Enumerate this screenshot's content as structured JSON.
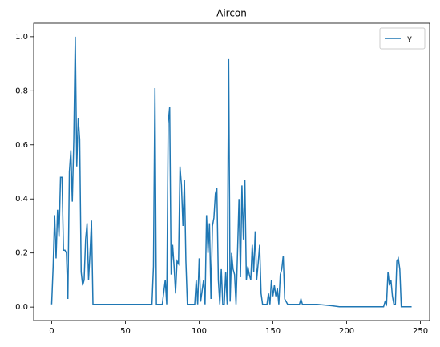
{
  "chart_data": {
    "type": "line",
    "title": "Aircon",
    "x": [
      0,
      1,
      2,
      3,
      4,
      5,
      6,
      7,
      8,
      9,
      10,
      11,
      12,
      13,
      14,
      15,
      16,
      17,
      18,
      19,
      20,
      21,
      22,
      23,
      24,
      25,
      26,
      27,
      28,
      30,
      68,
      69,
      70,
      71,
      75,
      77,
      78,
      79,
      80,
      81,
      82,
      83,
      84,
      85,
      86,
      87,
      88,
      89,
      90,
      91,
      92,
      97,
      98,
      99,
      100,
      101,
      102,
      103,
      104,
      105,
      106,
      107,
      108,
      109,
      110,
      111,
      112,
      113,
      114,
      115,
      116,
      117,
      118,
      119,
      120,
      121,
      122,
      123,
      124,
      125,
      126,
      127,
      128,
      129,
      130,
      131,
      132,
      133,
      134,
      135,
      136,
      137,
      138,
      139,
      140,
      141,
      142,
      143,
      146,
      147,
      148,
      149,
      150,
      151,
      152,
      153,
      154,
      155,
      156,
      157,
      158,
      160,
      168,
      169,
      170,
      180,
      190,
      195,
      225,
      226,
      227,
      228,
      229,
      230,
      231,
      232,
      233,
      234,
      235,
      236,
      237,
      244
    ],
    "series": [
      {
        "name": "y",
        "color": "#1f77b4",
        "values": [
          0.01,
          0.15,
          0.34,
          0.18,
          0.36,
          0.26,
          0.48,
          0.48,
          0.21,
          0.21,
          0.2,
          0.03,
          0.5,
          0.58,
          0.39,
          0.62,
          1.0,
          0.52,
          0.7,
          0.62,
          0.13,
          0.08,
          0.1,
          0.25,
          0.31,
          0.1,
          0.2,
          0.32,
          0.01,
          0.01,
          0.01,
          0.15,
          0.81,
          0.01,
          0.01,
          0.1,
          0.01,
          0.68,
          0.74,
          0.12,
          0.23,
          0.15,
          0.05,
          0.17,
          0.16,
          0.52,
          0.45,
          0.3,
          0.47,
          0.17,
          0.01,
          0.01,
          0.1,
          0.01,
          0.18,
          0.02,
          0.06,
          0.1,
          0.01,
          0.34,
          0.2,
          0.31,
          0.03,
          0.3,
          0.33,
          0.42,
          0.44,
          0.1,
          0.01,
          0.14,
          0.01,
          0.01,
          0.13,
          0.01,
          0.92,
          0.02,
          0.2,
          0.14,
          0.12,
          0.01,
          0.2,
          0.4,
          0.11,
          0.45,
          0.25,
          0.47,
          0.1,
          0.15,
          0.12,
          0.1,
          0.23,
          0.13,
          0.28,
          0.1,
          0.16,
          0.23,
          0.05,
          0.01,
          0.01,
          0.05,
          0.01,
          0.1,
          0.04,
          0.08,
          0.04,
          0.07,
          0.01,
          0.12,
          0.14,
          0.19,
          0.03,
          0.01,
          0.01,
          0.03,
          0.01,
          0.01,
          0.005,
          0.001,
          0.001,
          0.02,
          0.01,
          0.13,
          0.08,
          0.1,
          0.04,
          0.01,
          0.01,
          0.17,
          0.18,
          0.14,
          0.001,
          0.001
        ]
      }
    ],
    "xlim": [
      -12.2,
      256.2
    ],
    "ylim": [
      -0.05,
      1.05
    ],
    "xticks": [
      0,
      50,
      100,
      150,
      200,
      250
    ],
    "yticks": [
      {
        "value": 0,
        "label": "0.0"
      },
      {
        "value": 0.2,
        "label": "0.2"
      },
      {
        "value": 0.4,
        "label": "0.4"
      },
      {
        "value": 0.6,
        "label": "0.6"
      },
      {
        "value": 0.8,
        "label": "0.8"
      },
      {
        "value": 1,
        "label": "1.0"
      }
    ],
    "legend": "upper right"
  }
}
